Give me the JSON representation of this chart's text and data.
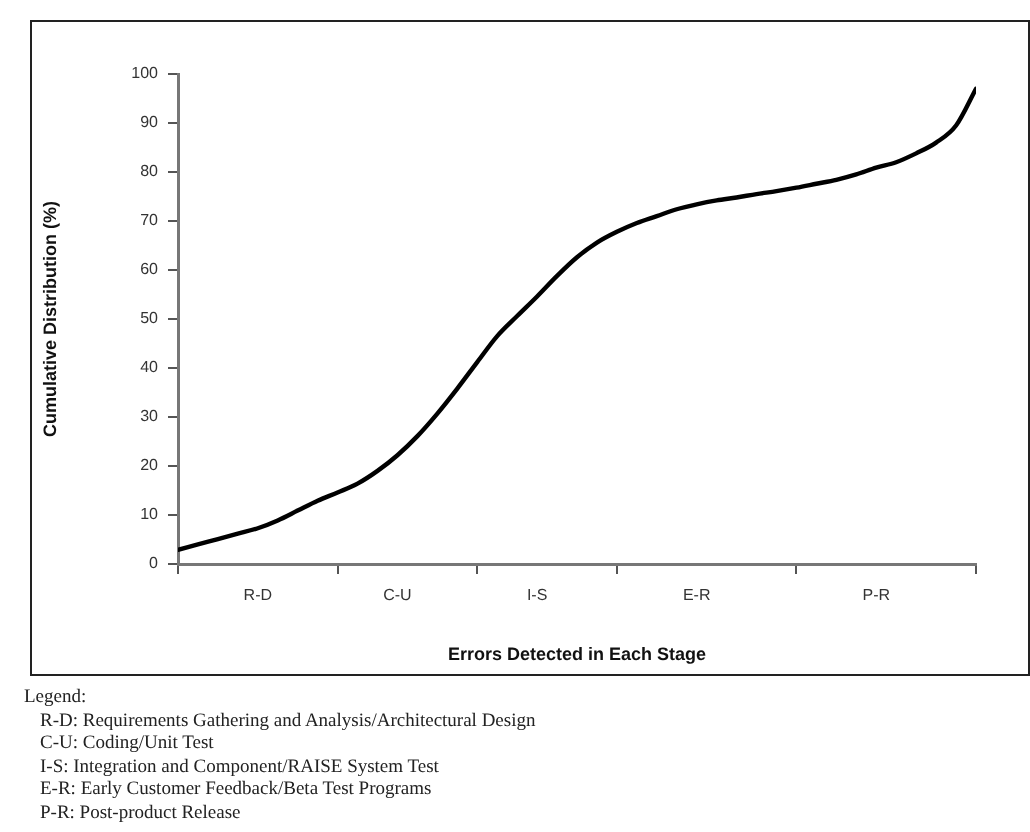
{
  "chart_data": {
    "type": "line",
    "xlabel": "Errors Detected in Each Stage",
    "ylabel": "Cumulative Distribution (%)",
    "categories": [
      null,
      null,
      null,
      null,
      "R-D",
      null,
      null,
      null,
      null,
      null,
      null,
      "C-U",
      null,
      null,
      null,
      null,
      null,
      null,
      "I-S",
      null,
      null,
      null,
      null,
      null,
      null,
      null,
      "E-R",
      null,
      null,
      null,
      null,
      null,
      null,
      null,
      null,
      "P-R",
      null,
      null,
      null,
      null,
      null
    ],
    "series": [
      {
        "color": "#000000",
        "values": [
          2.9,
          4.0,
          5.1,
          6.2,
          7.3,
          8.9,
          10.9,
          12.9,
          14.6,
          16.4,
          19.0,
          22.2,
          26.1,
          30.7,
          35.8,
          41.2,
          46.5,
          50.6,
          54.6,
          58.8,
          62.6,
          65.6,
          67.8,
          69.6,
          71.0,
          72.4,
          73.4,
          74.2,
          74.8,
          75.5,
          76.1,
          76.8,
          77.6,
          78.4,
          79.5,
          80.9,
          82.0,
          83.8,
          86.0,
          89.5,
          97
        ]
      }
    ],
    "ylim": [
      0,
      100
    ],
    "yticks": [
      0,
      10,
      20,
      30,
      40,
      50,
      60,
      70,
      80,
      90,
      100
    ],
    "marker": "none",
    "line_style": "solid",
    "legend": false,
    "annotations": [
      "Legend:",
      "R-D:  Requirements Gathering and Analysis/Architectural Design",
      "C-U:  Coding/Unit Test",
      "I-S:  Integration and Component/RAISE System Test",
      "E-R:  Early Customer Feedback/Beta Test Programs",
      "P-R:  Post-product Release"
    ]
  }
}
